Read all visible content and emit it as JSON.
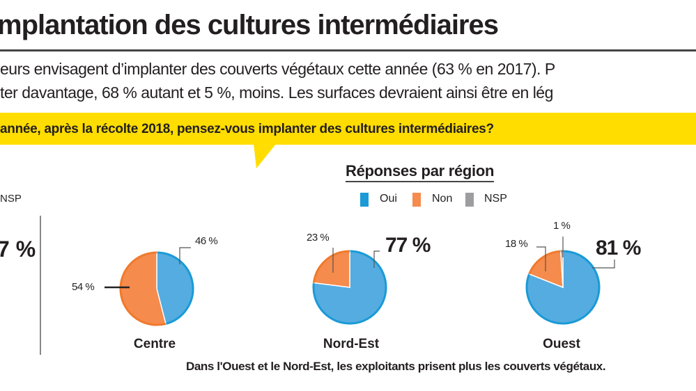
{
  "header": {
    "title": "mplantation des cultures intermédiaires",
    "body_lines": [
      "eurs envisagent d’implanter des couverts végétaux cette année (63 % en 2017). P",
      "ter davantage, 68 % autant et 5 %, moins. Les surfaces devraient ainsi être en lég"
    ],
    "question": "année, après la récolte 2018, pensez-vous implanter des cultures intermédiaires?"
  },
  "left_panel": {
    "legend_fragment": "NSP",
    "big_value": "7 %"
  },
  "chart_data": {
    "type": "pie",
    "title": "Réponses par région",
    "legend": [
      {
        "label": "Oui",
        "color": "#55ace0"
      },
      {
        "label": "Non",
        "color": "#f58b4c"
      },
      {
        "label": "NSP",
        "color": "#9d9d9f"
      }
    ],
    "legend_placement": "top",
    "pies": [
      {
        "region": "Centre",
        "values": {
          "Oui": 46,
          "Non": 54,
          "NSP": 0
        },
        "labels": {
          "Oui": "46 %",
          "Non": "54 %"
        }
      },
      {
        "region": "Nord-Est",
        "values": {
          "Oui": 77,
          "Non": 23,
          "NSP": 0
        },
        "labels": {
          "Oui": "77 %",
          "Non": "23 %"
        }
      },
      {
        "region": "Ouest",
        "values": {
          "Oui": 81,
          "Non": 18,
          "NSP": 1
        },
        "labels": {
          "Oui": "81 %",
          "Non": "18 %",
          "NSP": "1 %"
        }
      }
    ]
  },
  "caption": "Dans l'Ouest et le Nord-Est, les exploitants prisent plus les couverts végétaux.",
  "colors": {
    "accent_yellow": "#ffdd00",
    "oui_border": "#1a9ad6",
    "non_border": "#f07a2c"
  }
}
